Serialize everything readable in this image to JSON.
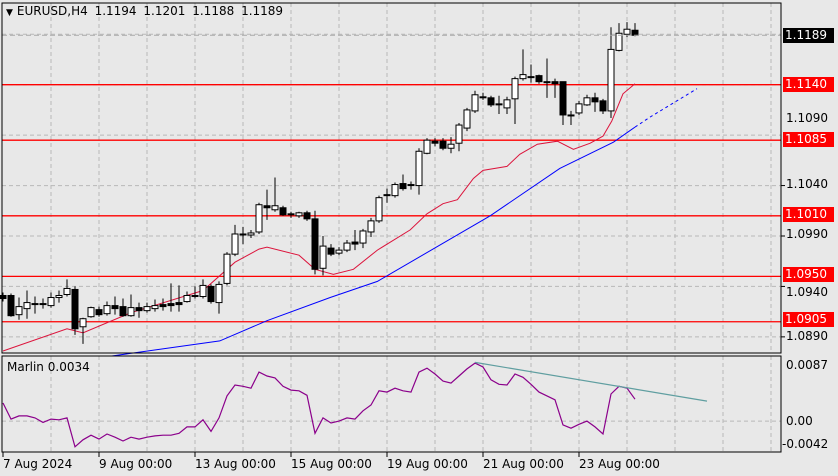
{
  "header": {
    "symbol": "EURUSD,H4",
    "open": "1.1194",
    "high": "1.1201",
    "low": "1.1188",
    "close": "1.1189"
  },
  "indicator": {
    "name": "Marlin",
    "value": "0.0034",
    "axis_labels": [
      "0.0087",
      "0.00",
      "-0.0042"
    ]
  },
  "price_axis": {
    "labels": [
      "1.1090",
      "1.1040",
      "1.0990",
      "1.0940",
      "1.0890"
    ]
  },
  "current_price": {
    "label": "1.1189",
    "value": 1.1189,
    "color": "#000000"
  },
  "levels": [
    {
      "label": "1.1140",
      "value": 1.114
    },
    {
      "label": "1.1085",
      "value": 1.1085
    },
    {
      "label": "1.1010",
      "value": 1.101
    },
    {
      "label": "1.0950",
      "value": 1.095
    },
    {
      "label": "1.0905",
      "value": 1.0905
    }
  ],
  "colors": {
    "level": "#ff0000",
    "fast_ma": "#dc143c",
    "slow_ma": "#0000ff",
    "oscillator": "#8b008b",
    "trendline": "#5f9ea0",
    "background": "#e8e8e8"
  },
  "time_axis": {
    "labels": [
      "7 Aug 2024",
      "9 Aug 00:00",
      "13 Aug 00:00",
      "15 Aug 00:00",
      "19 Aug 00:00",
      "21 Aug 00:00",
      "23 Aug 00:00"
    ],
    "bar_index": [
      0,
      12,
      24,
      36,
      48,
      60,
      72
    ]
  },
  "chart_data": {
    "type": "candlestick",
    "ohlc_order": [
      "open",
      "high",
      "low",
      "close"
    ],
    "candles": [
      [
        1.0931,
        1.0934,
        1.0925,
        1.0928
      ],
      [
        1.0931,
        1.0933,
        1.091,
        1.0911
      ],
      [
        1.0912,
        1.0929,
        1.0907,
        1.092
      ],
      [
        1.0918,
        1.0936,
        1.0908,
        1.0924
      ],
      [
        1.0923,
        1.093,
        1.0913,
        1.0923
      ],
      [
        1.0923,
        1.0928,
        1.0918,
        1.0923
      ],
      [
        1.0921,
        1.0934,
        1.0919,
        1.0929
      ],
      [
        1.0929,
        1.0936,
        1.0924,
        1.0931
      ],
      [
        1.0932,
        1.0947,
        1.093,
        1.0938
      ],
      [
        1.0937,
        1.094,
        1.0892,
        1.0898
      ],
      [
        1.09,
        1.0909,
        1.0883,
        1.0908
      ],
      [
        1.091,
        1.092,
        1.0909,
        1.0919
      ],
      [
        1.0917,
        1.092,
        1.091,
        1.0912
      ],
      [
        1.0913,
        1.0925,
        1.0911,
        1.0921
      ],
      [
        1.0921,
        1.093,
        1.0912,
        1.0918
      ],
      [
        1.092,
        1.0928,
        1.091,
        1.0911
      ],
      [
        1.0911,
        1.0932,
        1.091,
        1.0919
      ],
      [
        1.0919,
        1.0924,
        1.0909,
        1.0916
      ],
      [
        1.0916,
        1.0924,
        1.0914,
        1.092
      ],
      [
        1.0918,
        1.0927,
        1.0915,
        1.0921
      ],
      [
        1.0922,
        1.0928,
        1.0916,
        1.092
      ],
      [
        1.0923,
        1.0943,
        1.0915,
        1.0921
      ],
      [
        1.0924,
        1.0941,
        1.0915,
        1.0922
      ],
      [
        1.0925,
        1.0935,
        1.0924,
        1.0931
      ],
      [
        1.0931,
        1.094,
        1.0928,
        1.093
      ],
      [
        1.093,
        1.0947,
        1.0928,
        1.0941
      ],
      [
        1.094,
        1.0942,
        1.0923,
        1.0925
      ],
      [
        1.0924,
        1.0945,
        1.0913,
        1.0942
      ],
      [
        1.0943,
        1.0974,
        1.0941,
        1.0972
      ],
      [
        1.0972,
        1.1001,
        1.097,
        1.0992
      ],
      [
        1.0992,
        1.0999,
        1.0982,
        1.0992
      ],
      [
        1.0991,
        1.0996,
        1.0988,
        1.0993
      ],
      [
        1.0994,
        1.1023,
        1.0992,
        1.1021
      ],
      [
        1.102,
        1.1036,
        1.1006,
        1.1018
      ],
      [
        1.1016,
        1.1048,
        1.1014,
        1.102
      ],
      [
        1.1018,
        1.102,
        1.101,
        1.1011
      ],
      [
        1.1012,
        1.1014,
        1.1008,
        1.1011
      ],
      [
        1.101,
        1.1014,
        1.1008,
        1.1013
      ],
      [
        1.1013,
        1.1015,
        1.1005,
        1.1007
      ],
      [
        1.1007,
        1.1015,
        1.0952,
        1.0957
      ],
      [
        1.0958,
        1.099,
        1.0951,
        1.098
      ],
      [
        1.0978,
        1.0982,
        1.097,
        1.0972
      ],
      [
        1.0973,
        1.0979,
        1.0971,
        1.0976
      ],
      [
        1.0976,
        1.0986,
        1.0974,
        1.0983
      ],
      [
        1.0984,
        1.0996,
        1.0976,
        1.0982
      ],
      [
        1.0983,
        1.0997,
        1.0978,
        1.0995
      ],
      [
        1.0994,
        1.1008,
        1.0989,
        1.1005
      ],
      [
        1.1005,
        1.103,
        1.1003,
        1.1028
      ],
      [
        1.1031,
        1.1037,
        1.1023,
        1.1031
      ],
      [
        1.103,
        1.1043,
        1.1028,
        1.1041
      ],
      [
        1.1042,
        1.1051,
        1.1035,
        1.1037
      ],
      [
        1.1041,
        1.1044,
        1.1036,
        1.1041
      ],
      [
        1.104,
        1.1077,
        1.1031,
        1.1074
      ],
      [
        1.1072,
        1.1087,
        1.1071,
        1.1085
      ],
      [
        1.1084,
        1.1087,
        1.1079,
        1.1082
      ],
      [
        1.1084,
        1.1087,
        1.1075,
        1.1077
      ],
      [
        1.1077,
        1.1088,
        1.1072,
        1.1081
      ],
      [
        1.1082,
        1.1102,
        1.1074,
        1.11
      ],
      [
        1.1097,
        1.1117,
        1.1094,
        1.1115
      ],
      [
        1.1114,
        1.1134,
        1.1112,
        1.113
      ],
      [
        1.1128,
        1.1132,
        1.1125,
        1.1128
      ],
      [
        1.1127,
        1.1129,
        1.1118,
        1.112
      ],
      [
        1.1121,
        1.1129,
        1.1111,
        1.1121
      ],
      [
        1.1117,
        1.1128,
        1.1111,
        1.1125
      ],
      [
        1.1126,
        1.1148,
        1.1101,
        1.1146
      ],
      [
        1.1146,
        1.1175,
        1.1144,
        1.115
      ],
      [
        1.1148,
        1.116,
        1.1142,
        1.1148
      ],
      [
        1.1149,
        1.115,
        1.1141,
        1.1143
      ],
      [
        1.1143,
        1.1166,
        1.1127,
        1.1143
      ],
      [
        1.1143,
        1.1146,
        1.1127,
        1.1141
      ],
      [
        1.1143,
        1.1143,
        1.11,
        1.111
      ],
      [
        1.111,
        1.1114,
        1.11,
        1.111
      ],
      [
        1.1112,
        1.1124,
        1.111,
        1.1121
      ],
      [
        1.112,
        1.113,
        1.1119,
        1.1127
      ],
      [
        1.1127,
        1.1132,
        1.1113,
        1.1123
      ],
      [
        1.1124,
        1.1126,
        1.1111,
        1.1114
      ],
      [
        1.1114,
        1.1197,
        1.1107,
        1.1175
      ],
      [
        1.1174,
        1.1201,
        1.1173,
        1.1191
      ],
      [
        1.119,
        1.1202,
        1.1187,
        1.1195
      ],
      [
        1.1194,
        1.1201,
        1.1188,
        1.1189
      ]
    ],
    "fast_ma": [
      [
        0,
        1.0876
      ],
      [
        8,
        1.0898
      ],
      [
        10,
        1.0894
      ],
      [
        16,
        1.0914
      ],
      [
        25,
        1.0936
      ],
      [
        29,
        1.0964
      ],
      [
        32,
        1.0977
      ],
      [
        33,
        1.0979
      ],
      [
        37,
        1.0971
      ],
      [
        39,
        1.0957
      ],
      [
        41.3,
        1.0952
      ],
      [
        43.8,
        1.0957
      ],
      [
        46.8,
        1.0976
      ],
      [
        50.9,
        1.0996
      ],
      [
        53,
        1.1012
      ],
      [
        55,
        1.1022
      ],
      [
        56.8,
        1.1026
      ],
      [
        58.8,
        1.1047
      ],
      [
        60,
        1.1055
      ],
      [
        63,
        1.1059
      ],
      [
        64.6,
        1.1071
      ],
      [
        66.8,
        1.1081
      ],
      [
        69.3,
        1.1084
      ],
      [
        71.3,
        1.1076
      ],
      [
        73.4,
        1.1082
      ],
      [
        75,
        1.1089
      ],
      [
        76.1,
        1.1104
      ],
      [
        77.5,
        1.1131
      ],
      [
        79,
        1.1141
      ]
    ],
    "slow_ma": [
      [
        13.6,
        1.0871
      ],
      [
        27.1,
        1.0886
      ],
      [
        33,
        1.0906
      ],
      [
        40.9,
        1.0929
      ],
      [
        46.8,
        1.0945
      ],
      [
        60.9,
        1.101
      ],
      [
        69.6,
        1.1057
      ],
      [
        76.3,
        1.1083
      ],
      [
        79,
        1.1098
      ]
    ],
    "slow_ma_projection": [
      [
        79,
        1.1098
      ],
      [
        80.9,
        1.1108
      ],
      [
        86.75,
        1.1136
      ]
    ],
    "oscillator": [
      0.0028,
      0.0003,
      0.0008,
      0.0008,
      0.0005,
      -0.0002,
      0.0003,
      0.0002,
      0.0005,
      -0.004,
      -0.0029,
      -0.0022,
      -0.0028,
      -0.002,
      -0.0025,
      -0.0031,
      -0.0025,
      -0.0028,
      -0.0025,
      -0.0023,
      -0.0022,
      -0.0022,
      -0.0019,
      -0.0009,
      -0.0009,
      0.0002,
      -0.0016,
      0.0005,
      0.0039,
      0.0056,
      0.0054,
      0.0051,
      0.0076,
      0.007,
      0.0067,
      0.0054,
      0.0048,
      0.0047,
      0.004,
      -0.0019,
      0.0005,
      -0.0003,
      0.0,
      0.0005,
      0.0003,
      0.0016,
      0.0025,
      0.0047,
      0.0045,
      0.0051,
      0.0047,
      0.0045,
      0.0076,
      0.0082,
      0.0073,
      0.0062,
      0.0059,
      0.007,
      0.0081,
      0.009,
      0.0084,
      0.0064,
      0.0057,
      0.0056,
      0.0073,
      0.0068,
      0.0057,
      0.0045,
      0.0039,
      0.0033,
      -0.0006,
      -0.0011,
      -0.0005,
      0.0,
      -0.0009,
      -0.002,
      0.0042,
      0.0054,
      0.0051,
      0.0034
    ],
    "oscillator_trendline": [
      [
        59,
        0.0091
      ],
      [
        88,
        0.0031
      ]
    ],
    "price_range": [
      1.0874,
      1.1221
    ],
    "oscillator_range": [
      -0.0048,
      0.0101
    ]
  }
}
